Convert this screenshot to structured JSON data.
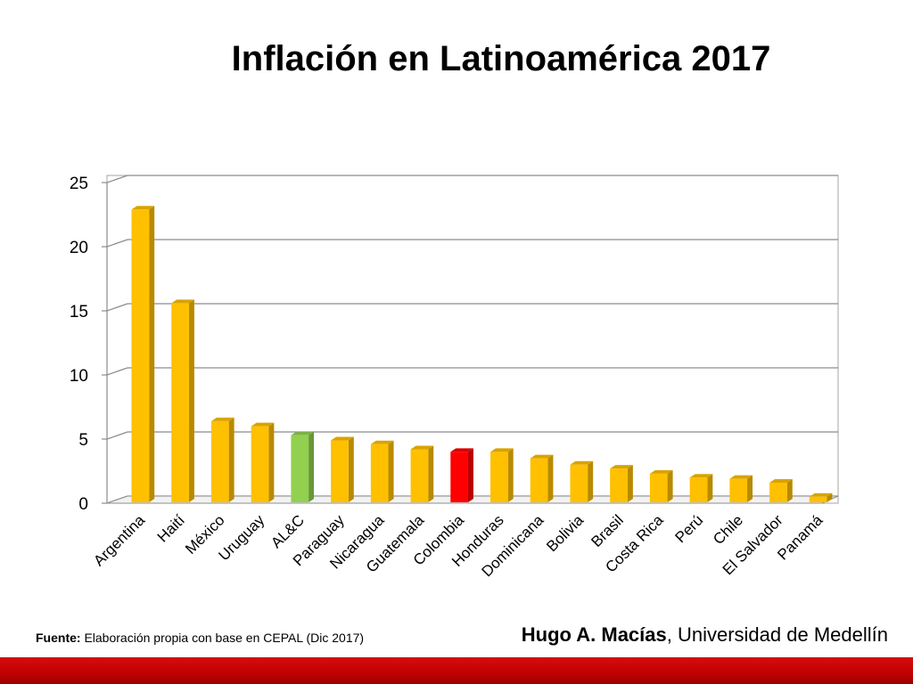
{
  "slide": {
    "title": "Inflación en Latinoamérica 2017",
    "source_label": "Fuente:",
    "source_text": " Elaboración propia con base en CEPAL (Dic 2017)",
    "author_name": "Hugo A. Macías",
    "author_affiliation": ", Universidad de Medellín"
  },
  "colors": {
    "default_bar": "#ffc000",
    "highlight_aggregate": "#92d050",
    "highlight_country": "#ff0000",
    "bottom_bar": "#c00000"
  },
  "chart_data": {
    "type": "bar",
    "title": "",
    "xlabel": "",
    "ylabel": "",
    "ylim": [
      0,
      25
    ],
    "yticks": [
      0,
      5,
      10,
      15,
      20,
      25
    ],
    "grid": true,
    "legend": "none",
    "categories": [
      "Argentina",
      "Haití",
      "México",
      "Uruguay",
      "AL&C",
      "Paraguay",
      "Nicaragua",
      "Guatemala",
      "Colombia",
      "Honduras",
      "Dominicana",
      "Bolivia",
      "Brasil",
      "Costa Rica",
      "Perú",
      "Chile",
      "El Salvador",
      "Panamá"
    ],
    "values": [
      22.9,
      15.6,
      6.4,
      6.0,
      5.3,
      4.9,
      4.6,
      4.2,
      4.0,
      4.0,
      3.5,
      3.0,
      2.7,
      2.3,
      2.0,
      1.9,
      1.6,
      0.5
    ],
    "bar_colors": [
      "default_bar",
      "default_bar",
      "default_bar",
      "default_bar",
      "highlight_aggregate",
      "default_bar",
      "default_bar",
      "default_bar",
      "highlight_country",
      "default_bar",
      "default_bar",
      "default_bar",
      "default_bar",
      "default_bar",
      "default_bar",
      "default_bar",
      "default_bar",
      "default_bar"
    ]
  }
}
